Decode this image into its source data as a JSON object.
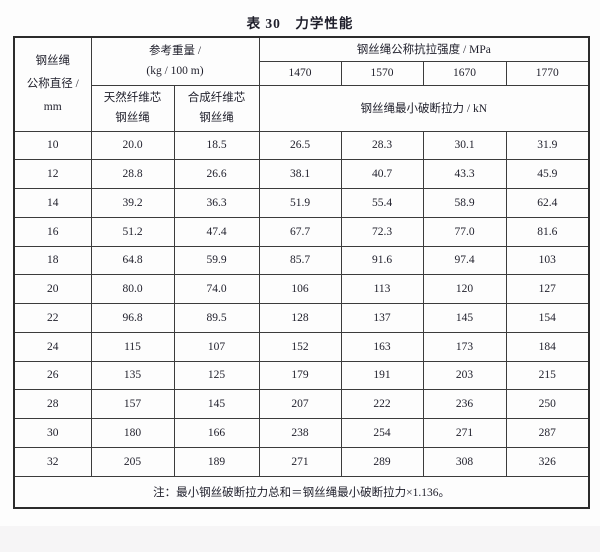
{
  "page": {
    "title": "表 30　力学性能",
    "background_color": "#fdfdfd",
    "footer_strip_color": "#f6f5f6",
    "text_color": "#1e1e2a",
    "border_color": "#2c2c2c"
  },
  "table": {
    "header": {
      "diameter": {
        "line1": "钢丝绳",
        "line2": "公称直径 /",
        "line3": "mm"
      },
      "ref_weight": {
        "line1": "参考重量 /",
        "line2": "(kg / 100 m)"
      },
      "tensile_strength": "钢丝绳公称抗拉强度 / MPa",
      "strength_grades": [
        "1470",
        "1570",
        "1670",
        "1770"
      ],
      "natural_core": {
        "line1": "天然纤维芯",
        "line2": "钢丝绳"
      },
      "synthetic_core": {
        "line1": "合成纤维芯",
        "line2": "钢丝绳"
      },
      "min_breaking_force": "钢丝绳最小破断拉力 / kN"
    },
    "rows": [
      [
        "10",
        "20.0",
        "18.5",
        "26.5",
        "28.3",
        "30.1",
        "31.9"
      ],
      [
        "12",
        "28.8",
        "26.6",
        "38.1",
        "40.7",
        "43.3",
        "45.9"
      ],
      [
        "14",
        "39.2",
        "36.3",
        "51.9",
        "55.4",
        "58.9",
        "62.4"
      ],
      [
        "16",
        "51.2",
        "47.4",
        "67.7",
        "72.3",
        "77.0",
        "81.6"
      ],
      [
        "18",
        "64.8",
        "59.9",
        "85.7",
        "91.6",
        "97.4",
        "103"
      ],
      [
        "20",
        "80.0",
        "74.0",
        "106",
        "113",
        "120",
        "127"
      ],
      [
        "22",
        "96.8",
        "89.5",
        "128",
        "137",
        "145",
        "154"
      ],
      [
        "24",
        "115",
        "107",
        "152",
        "163",
        "173",
        "184"
      ],
      [
        "26",
        "135",
        "125",
        "179",
        "191",
        "203",
        "215"
      ],
      [
        "28",
        "157",
        "145",
        "207",
        "222",
        "236",
        "250"
      ],
      [
        "30",
        "180",
        "166",
        "238",
        "254",
        "271",
        "287"
      ],
      [
        "32",
        "205",
        "189",
        "271",
        "289",
        "308",
        "326"
      ]
    ],
    "note": "注：最小钢丝破断拉力总和＝钢丝绳最小破断拉力×1.136。"
  }
}
